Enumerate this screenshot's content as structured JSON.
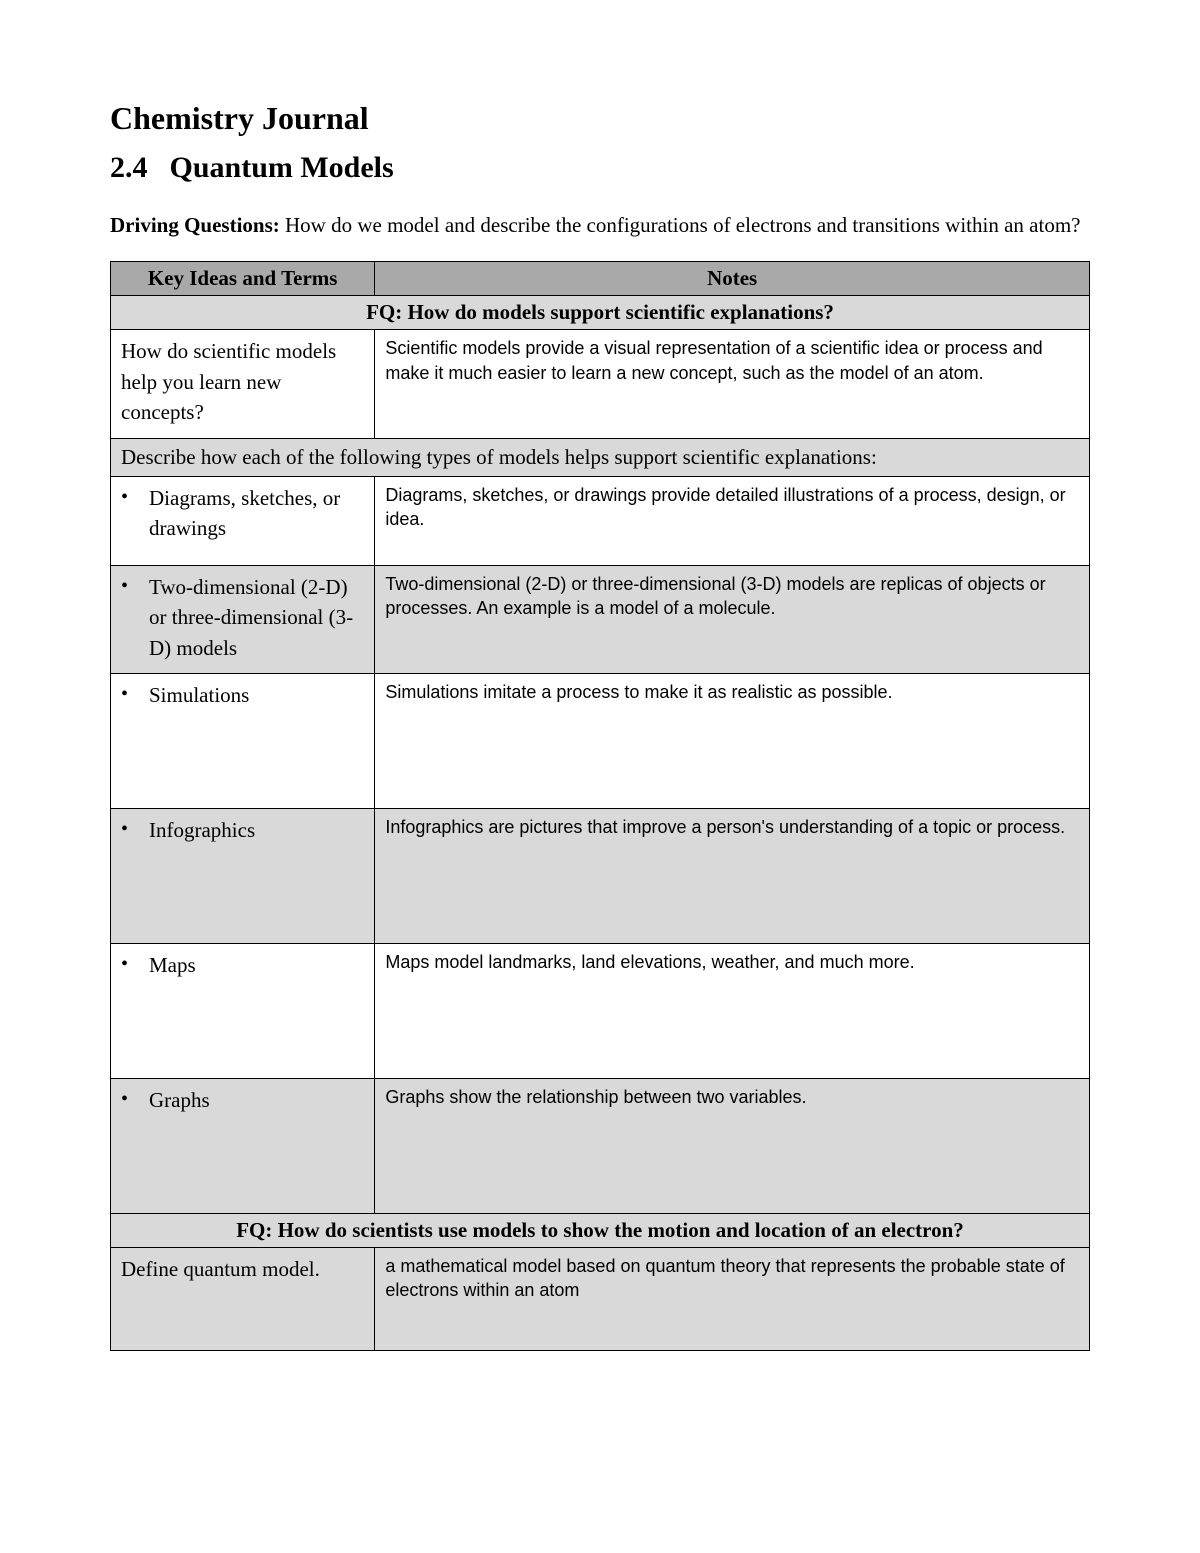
{
  "colors": {
    "page_bg": "#ffffff",
    "text": "#000000",
    "header_bg": "#a9a9a9",
    "alt_row_bg": "#d9d9d9",
    "border": "#000000"
  },
  "fonts": {
    "serif": "Times New Roman",
    "sans": "Verdana",
    "title_size_pt": 24,
    "body_size_pt": 16,
    "notes_size_pt": 13
  },
  "title": "Chemistry Journal",
  "section_number": "2.4",
  "section_title": "Quantum Models",
  "driving_q_label": "Driving Questions:",
  "driving_q_text": "How do we model and describe the configurations of electrons and transitions within an atom?",
  "table": {
    "header_key": "Key Ideas and Terms",
    "header_notes": "Notes",
    "fq1": "FQ: How do models support scientific explanations?",
    "r1_key": "How do scientific models help you learn new concepts?",
    "r1_notes": "Scientific models provide a visual representation of a scientific idea or process and make it much easier to learn a new concept, such as the model of an atom.",
    "subhead1": "Describe how each of the following types of models helps support scientific explanations:",
    "m1_key": "Diagrams, sketches, or drawings",
    "m1_notes": "Diagrams, sketches, or drawings provide detailed illustrations of a process, design, or idea.",
    "m2_key": "Two-dimensional (2-D) or three-dimensional (3-D) models",
    "m2_notes": "Two-dimensional (2-D) or three-dimensional (3-D) models are replicas of objects or processes. An example is a model of a molecule.",
    "m3_key": "Simulations",
    "m3_notes": "Simulations imitate a process to make it as realistic as possible.",
    "m4_key": "Infographics",
    "m4_notes": "Infographics are pictures that improve a person's understanding of a topic or process.",
    "m5_key": "Maps",
    "m5_notes": "Maps model landmarks, land elevations, weather, and much more.",
    "m6_key": "Graphs",
    "m6_notes": "Graphs show the relationship between two variables.",
    "fq2": "FQ: How do scientists use models to show the motion and location of an electron?",
    "r2_key": "Define quantum model.",
    "r2_notes": "a mathematical model based on quantum theory that represents the probable state of electrons within an atom"
  }
}
